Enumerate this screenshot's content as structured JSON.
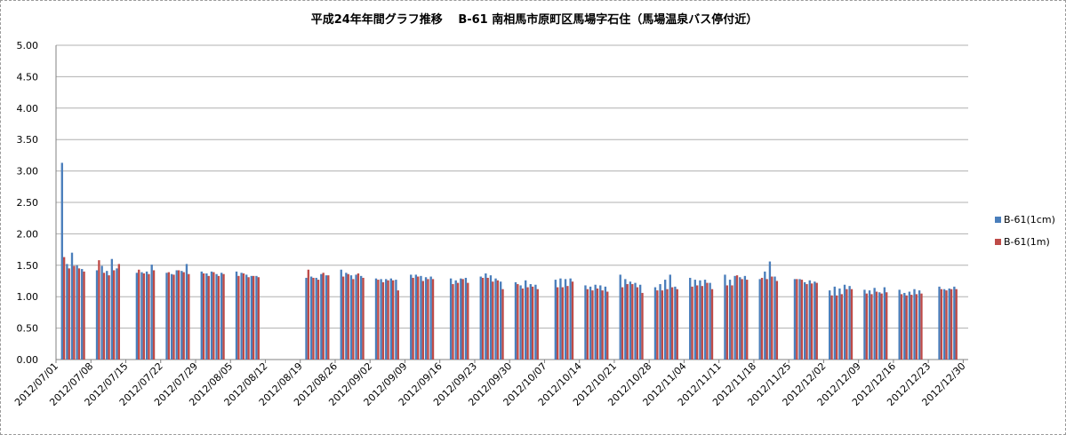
{
  "chart_data": {
    "type": "bar",
    "title": "平成24年年間グラフ推移　 B-61 南相馬市原町区馬場字石住（馬場温泉バス停付近）",
    "xlabel": "",
    "ylabel": "",
    "ylim": [
      0,
      5
    ],
    "y_ticks": [
      "0.00",
      "0.50",
      "1.00",
      "1.50",
      "2.00",
      "2.50",
      "3.00",
      "3.50",
      "4.00",
      "4.50",
      "5.00"
    ],
    "x_ticks": [
      "2012/07/01",
      "2012/07/08",
      "2012/07/15",
      "2012/07/22",
      "2012/07/29",
      "2012/08/05",
      "2012/08/12",
      "2012/08/19",
      "2012/08/26",
      "2012/09/02",
      "2012/09/09",
      "2012/09/16",
      "2012/09/23",
      "2012/09/30",
      "2012/10/07",
      "2012/10/14",
      "2012/10/21",
      "2012/10/28",
      "2012/11/04",
      "2012/11/11",
      "2012/11/18",
      "2012/11/25",
      "2012/12/02",
      "2012/12/09",
      "2012/12/16",
      "2012/12/23",
      "2012/12/30"
    ],
    "x_start_date": "2012/07/01",
    "x_end_date": "2012/12/30",
    "grid": true,
    "legend_position": "right",
    "colors": {
      "s1": "#4a7ebb",
      "s2": "#be4b48",
      "grid": "#b0b0b0"
    },
    "series": [
      {
        "name": "B-61(1cm)",
        "color": "#4a7ebb",
        "dates": [
          "2012/07/02",
          "2012/07/03",
          "2012/07/04",
          "2012/07/05",
          "2012/07/06",
          "2012/07/09",
          "2012/07/10",
          "2012/07/11",
          "2012/07/12",
          "2012/07/13",
          "2012/07/17",
          "2012/07/18",
          "2012/07/19",
          "2012/07/20",
          "2012/07/23",
          "2012/07/24",
          "2012/07/25",
          "2012/07/26",
          "2012/07/27",
          "2012/07/30",
          "2012/07/31",
          "2012/08/01",
          "2012/08/02",
          "2012/08/03",
          "2012/08/06",
          "2012/08/07",
          "2012/08/08",
          "2012/08/09",
          "2012/08/10",
          "2012/08/20",
          "2012/08/21",
          "2012/08/22",
          "2012/08/23",
          "2012/08/24",
          "2012/08/27",
          "2012/08/28",
          "2012/08/29",
          "2012/08/30",
          "2012/08/31",
          "2012/09/03",
          "2012/09/04",
          "2012/09/05",
          "2012/09/06",
          "2012/09/07",
          "2012/09/10",
          "2012/09/11",
          "2012/09/12",
          "2012/09/13",
          "2012/09/14",
          "2012/09/18",
          "2012/09/19",
          "2012/09/20",
          "2012/09/21",
          "2012/09/24",
          "2012/09/25",
          "2012/09/26",
          "2012/09/27",
          "2012/09/28",
          "2012/10/01",
          "2012/10/02",
          "2012/10/03",
          "2012/10/04",
          "2012/10/05",
          "2012/10/09",
          "2012/10/10",
          "2012/10/11",
          "2012/10/12",
          "2012/10/15",
          "2012/10/16",
          "2012/10/17",
          "2012/10/18",
          "2012/10/19",
          "2012/10/22",
          "2012/10/23",
          "2012/10/24",
          "2012/10/25",
          "2012/10/26",
          "2012/10/29",
          "2012/10/30",
          "2012/10/31",
          "2012/11/01",
          "2012/11/02",
          "2012/11/05",
          "2012/11/06",
          "2012/11/07",
          "2012/11/08",
          "2012/11/09",
          "2012/11/12",
          "2012/11/13",
          "2012/11/14",
          "2012/11/15",
          "2012/11/16",
          "2012/11/19",
          "2012/11/20",
          "2012/11/21",
          "2012/11/22",
          "2012/11/26",
          "2012/11/27",
          "2012/11/28",
          "2012/11/29",
          "2012/11/30",
          "2012/12/03",
          "2012/12/04",
          "2012/12/05",
          "2012/12/06",
          "2012/12/07",
          "2012/12/10",
          "2012/12/11",
          "2012/12/12",
          "2012/12/13",
          "2012/12/14",
          "2012/12/17",
          "2012/12/18",
          "2012/12/19",
          "2012/12/20",
          "2012/12/21",
          "2012/12/25",
          "2012/12/26",
          "2012/12/27",
          "2012/12/28"
        ],
        "values": [
          3.13,
          1.52,
          1.7,
          1.5,
          1.44,
          1.42,
          1.49,
          1.41,
          1.6,
          1.45,
          1.38,
          1.39,
          1.4,
          1.51,
          1.38,
          1.36,
          1.42,
          1.41,
          1.52,
          1.4,
          1.37,
          1.4,
          1.36,
          1.38,
          1.4,
          1.38,
          1.35,
          1.33,
          1.33,
          1.3,
          1.32,
          1.3,
          1.36,
          1.34,
          1.43,
          1.38,
          1.34,
          1.35,
          1.33,
          1.29,
          1.28,
          1.28,
          1.29,
          1.27,
          1.35,
          1.35,
          1.33,
          1.31,
          1.32,
          1.29,
          1.26,
          1.29,
          1.3,
          1.32,
          1.37,
          1.34,
          1.29,
          1.24,
          1.23,
          1.18,
          1.26,
          1.2,
          1.19,
          1.27,
          1.29,
          1.28,
          1.29,
          1.18,
          1.16,
          1.19,
          1.18,
          1.16,
          1.35,
          1.28,
          1.24,
          1.22,
          1.19,
          1.15,
          1.2,
          1.27,
          1.35,
          1.16,
          1.3,
          1.27,
          1.26,
          1.27,
          1.22,
          1.35,
          1.27,
          1.33,
          1.31,
          1.33,
          1.28,
          1.4,
          1.56,
          1.32,
          1.28,
          1.28,
          1.23,
          1.26,
          1.24,
          1.1,
          1.16,
          1.13,
          1.19,
          1.17,
          1.11,
          1.1,
          1.14,
          1.07,
          1.15,
          1.11,
          1.06,
          1.08,
          1.12,
          1.1,
          1.16,
          1.12,
          1.13,
          1.16
        ]
      },
      {
        "name": "B-61(1m)",
        "color": "#be4b48",
        "dates": [
          "2012/07/02",
          "2012/07/03",
          "2012/07/04",
          "2012/07/05",
          "2012/07/06",
          "2012/07/09",
          "2012/07/10",
          "2012/07/11",
          "2012/07/12",
          "2012/07/13",
          "2012/07/17",
          "2012/07/18",
          "2012/07/19",
          "2012/07/20",
          "2012/07/23",
          "2012/07/24",
          "2012/07/25",
          "2012/07/26",
          "2012/07/27",
          "2012/07/30",
          "2012/07/31",
          "2012/08/01",
          "2012/08/02",
          "2012/08/03",
          "2012/08/06",
          "2012/08/07",
          "2012/08/08",
          "2012/08/09",
          "2012/08/10",
          "2012/08/20",
          "2012/08/21",
          "2012/08/22",
          "2012/08/23",
          "2012/08/24",
          "2012/08/27",
          "2012/08/28",
          "2012/08/29",
          "2012/08/30",
          "2012/08/31",
          "2012/09/03",
          "2012/09/04",
          "2012/09/05",
          "2012/09/06",
          "2012/09/07",
          "2012/09/10",
          "2012/09/11",
          "2012/09/12",
          "2012/09/13",
          "2012/09/14",
          "2012/09/18",
          "2012/09/19",
          "2012/09/20",
          "2012/09/21",
          "2012/09/24",
          "2012/09/25",
          "2012/09/26",
          "2012/09/27",
          "2012/09/28",
          "2012/10/01",
          "2012/10/02",
          "2012/10/03",
          "2012/10/04",
          "2012/10/05",
          "2012/10/09",
          "2012/10/10",
          "2012/10/11",
          "2012/10/12",
          "2012/10/15",
          "2012/10/16",
          "2012/10/17",
          "2012/10/18",
          "2012/10/19",
          "2012/10/22",
          "2012/10/23",
          "2012/10/24",
          "2012/10/25",
          "2012/10/26",
          "2012/10/29",
          "2012/10/30",
          "2012/10/31",
          "2012/11/01",
          "2012/11/02",
          "2012/11/05",
          "2012/11/06",
          "2012/11/07",
          "2012/11/08",
          "2012/11/09",
          "2012/11/12",
          "2012/11/13",
          "2012/11/14",
          "2012/11/15",
          "2012/11/16",
          "2012/11/19",
          "2012/11/20",
          "2012/11/21",
          "2012/11/22",
          "2012/11/26",
          "2012/11/27",
          "2012/11/28",
          "2012/11/29",
          "2012/11/30",
          "2012/12/03",
          "2012/12/04",
          "2012/12/05",
          "2012/12/06",
          "2012/12/07",
          "2012/12/10",
          "2012/12/11",
          "2012/12/12",
          "2012/12/13",
          "2012/12/14",
          "2012/12/17",
          "2012/12/18",
          "2012/12/19",
          "2012/12/20",
          "2012/12/21",
          "2012/12/25",
          "2012/12/26",
          "2012/12/27",
          "2012/12/28"
        ],
        "values": [
          1.63,
          1.45,
          1.49,
          1.45,
          1.4,
          1.58,
          1.38,
          1.34,
          1.42,
          1.52,
          1.43,
          1.37,
          1.36,
          1.42,
          1.39,
          1.35,
          1.42,
          1.39,
          1.36,
          1.37,
          1.33,
          1.39,
          1.33,
          1.36,
          1.33,
          1.37,
          1.31,
          1.33,
          1.31,
          1.43,
          1.3,
          1.27,
          1.38,
          1.34,
          1.32,
          1.36,
          1.28,
          1.37,
          1.3,
          1.27,
          1.23,
          1.26,
          1.26,
          1.1,
          1.3,
          1.32,
          1.25,
          1.28,
          1.28,
          1.2,
          1.22,
          1.28,
          1.22,
          1.3,
          1.3,
          1.24,
          1.26,
          1.12,
          1.2,
          1.13,
          1.15,
          1.16,
          1.12,
          1.15,
          1.15,
          1.17,
          1.24,
          1.12,
          1.1,
          1.13,
          1.1,
          1.08,
          1.15,
          1.2,
          1.2,
          1.15,
          1.06,
          1.1,
          1.1,
          1.12,
          1.15,
          1.12,
          1.16,
          1.18,
          1.17,
          1.22,
          1.12,
          1.18,
          1.18,
          1.34,
          1.28,
          1.27,
          1.3,
          1.28,
          1.32,
          1.25,
          1.28,
          1.27,
          1.2,
          1.21,
          1.22,
          1.02,
          1.02,
          1.04,
          1.12,
          1.12,
          1.05,
          1.04,
          1.08,
          1.05,
          1.07,
          1.04,
          1.02,
          1.03,
          1.04,
          1.05,
          1.12,
          1.1,
          1.12,
          1.12
        ]
      }
    ]
  }
}
